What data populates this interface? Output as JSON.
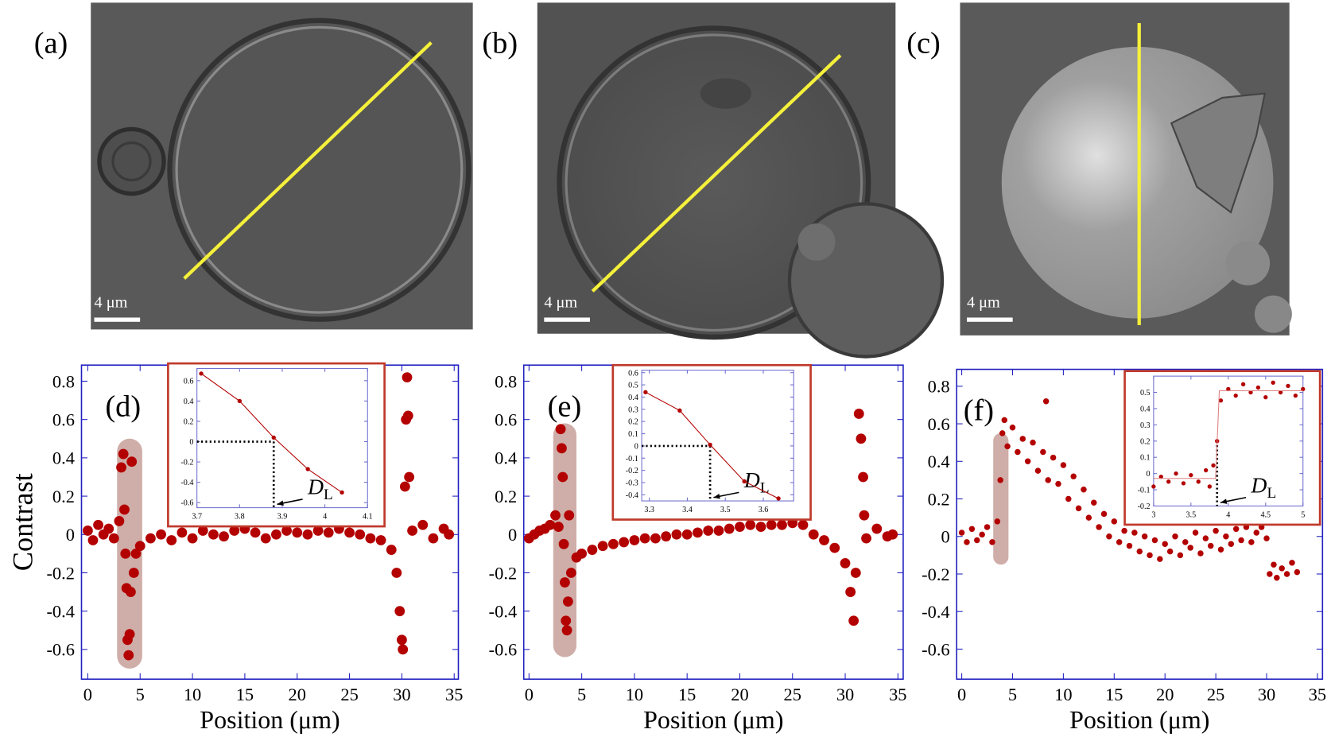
{
  "images": [
    {
      "label": "(a)",
      "scale_bar": "4 μm"
    },
    {
      "label": "(b)",
      "scale_bar": "4 μm"
    },
    {
      "label": "(c)",
      "scale_bar": "4 μm"
    }
  ],
  "chart_data": [
    {
      "type": "scatter",
      "panel_label": "(d)",
      "x_label": "Position (μm)",
      "y_label": "Contrast",
      "xlim": [
        -0.6,
        35.4
      ],
      "ylim": [
        -0.755,
        0.884
      ],
      "xticks": [
        0,
        5,
        10,
        15,
        20,
        25,
        30,
        35
      ],
      "yticks": [
        0.8,
        0.6,
        0.4,
        0.2,
        0,
        -0.2,
        -0.4,
        -0.6
      ],
      "highlight_x": [
        2.8,
        5.2
      ],
      "highlight_y": [
        -0.7,
        0.5
      ],
      "series": [
        {
          "color": "#b30000",
          "x": [
            0,
            0.5,
            1,
            1.5,
            2,
            2.5,
            3,
            3.2,
            3.4,
            3.5,
            3.6,
            3.7,
            3.8,
            3.9,
            4,
            4.1,
            4.2,
            4.4,
            4.6,
            5,
            6,
            7,
            8,
            9,
            10,
            11,
            12,
            13,
            14,
            15,
            16,
            17,
            18,
            19,
            20,
            21,
            22,
            23,
            24,
            25,
            26,
            27,
            28,
            29,
            29.5,
            29.8,
            30,
            30.1,
            30.3,
            30.4,
            30.5,
            30.6,
            30.7,
            31,
            32,
            33,
            34,
            34.5
          ],
          "values": [
            0.02,
            -0.03,
            0.05,
            0,
            0.03,
            -0.02,
            0.07,
            0.35,
            0.42,
            0.13,
            -0.1,
            -0.28,
            -0.55,
            -0.63,
            -0.52,
            -0.3,
            0.38,
            -0.2,
            -0.1,
            -0.06,
            -0.02,
            0,
            -0.03,
            0.01,
            -0.02,
            0.02,
            0,
            -0.01,
            0.02,
            0.03,
            0.01,
            -0.02,
            0,
            0.02,
            0.01,
            0,
            0.02,
            0.01,
            0.03,
            0.01,
            0,
            -0.02,
            -0.03,
            -0.08,
            -0.2,
            -0.4,
            -0.55,
            -0.6,
            0.25,
            0.6,
            0.82,
            0.62,
            0.3,
            0.02,
            0.05,
            -0.02,
            0.03,
            0
          ]
        }
      ],
      "inset": {
        "type": "scatter",
        "xlim": [
          3.7,
          4.1
        ],
        "ylim": [
          -0.65,
          0.72
        ],
        "xticks": [
          3.7,
          3.8,
          3.9,
          4,
          4.1
        ],
        "yticks": [
          0.6,
          0.4,
          0.2,
          0,
          -0.2,
          -0.4,
          -0.6
        ],
        "marker": {
          "x": 3.88,
          "y": 0
        },
        "marker_hline": true,
        "annotation": "D",
        "annotation_sub": "L",
        "series": [
          {
            "color": "#b30000",
            "line": true,
            "x": [
              3.71,
              3.8,
              3.88,
              3.96,
              4.04
            ],
            "values": [
              0.67,
              0.4,
              0.04,
              -0.27,
              -0.5
            ]
          }
        ]
      }
    },
    {
      "type": "scatter",
      "panel_label": "(e)",
      "x_label": "Position (μm)",
      "xlim": [
        -0.5,
        35.5
      ],
      "ylim": [
        -0.755,
        0.884
      ],
      "xticks": [
        0,
        5,
        10,
        15,
        20,
        25,
        30,
        35
      ],
      "yticks": [
        0.8,
        0.6,
        0.4,
        0.2,
        0,
        -0.2,
        -0.4,
        -0.6
      ],
      "highlight_x": [
        2.3,
        4.5
      ],
      "highlight_y": [
        -0.64,
        0.58
      ],
      "series": [
        {
          "color": "#b30000",
          "x": [
            0,
            0.5,
            1,
            1.5,
            2,
            2.5,
            2.8,
            3,
            3.1,
            3.2,
            3.3,
            3.4,
            3.5,
            3.6,
            3.7,
            3.8,
            4,
            4.5,
            5,
            6,
            7,
            8,
            9,
            10,
            11,
            12,
            13,
            14,
            15,
            16,
            17,
            18,
            19,
            20,
            21,
            22,
            23,
            24,
            25,
            26,
            27,
            28,
            29,
            30,
            30.5,
            30.8,
            31,
            31.3,
            31.5,
            31.7,
            31.8,
            32,
            33,
            34,
            34.5
          ],
          "values": [
            -0.02,
            0,
            0.02,
            0.03,
            0.05,
            0.1,
            0.04,
            0.55,
            0.45,
            0.3,
            -0.05,
            -0.25,
            -0.45,
            -0.5,
            -0.35,
            0.1,
            -0.2,
            -0.12,
            -0.1,
            -0.08,
            -0.06,
            -0.05,
            -0.04,
            -0.03,
            -0.02,
            -0.02,
            -0.01,
            0,
            0,
            0.01,
            0.02,
            0.02,
            0.03,
            0.04,
            0.05,
            0.04,
            0.05,
            0.05,
            0.06,
            0.05,
            0,
            -0.03,
            -0.07,
            -0.15,
            -0.3,
            -0.45,
            -0.2,
            0.63,
            0.5,
            0.3,
            0.1,
            -0.02,
            0.03,
            -0.01,
            0
          ]
        }
      ],
      "inset": {
        "type": "scatter",
        "xlim": [
          3.28,
          3.68
        ],
        "ylim": [
          -0.45,
          0.62
        ],
        "xticks": [
          3.3,
          3.4,
          3.5,
          3.6
        ],
        "yticks": [
          0.6,
          0.5,
          0.4,
          0.3,
          0.2,
          0.1,
          0,
          -0.1,
          -0.2,
          -0.3,
          -0.4
        ],
        "marker": {
          "x": 3.46,
          "y": 0
        },
        "marker_hline": true,
        "annotation": "D",
        "annotation_sub": "L",
        "series": [
          {
            "color": "#b30000",
            "line": true,
            "x": [
              3.29,
              3.38,
              3.46,
              3.55,
              3.64
            ],
            "values": [
              0.44,
              0.29,
              0.01,
              -0.29,
              -0.43
            ]
          }
        ]
      }
    },
    {
      "type": "scatter",
      "panel_label": "(f)",
      "x_label": "Position (μm)",
      "xlim": [
        -0.5,
        35.5
      ],
      "ylim": [
        -0.76,
        0.89
      ],
      "xticks": [
        0,
        5,
        10,
        15,
        20,
        25,
        30,
        35
      ],
      "yticks": [
        0.8,
        0.6,
        0.4,
        0.2,
        0,
        -0.2,
        -0.4,
        -0.6
      ],
      "highlight_x": [
        3.1,
        4.6
      ],
      "highlight_y": [
        -0.15,
        0.55
      ],
      "series": [
        {
          "color": "#b30000",
          "x": [
            0,
            0.5,
            1,
            1.5,
            2,
            2.5,
            3,
            3.5,
            3.8,
            4,
            4.2,
            4.5,
            5,
            5.5,
            6,
            6.5,
            7,
            7.5,
            8,
            8.3,
            8.5,
            9,
            9.5,
            10,
            10.5,
            11,
            11.5,
            12,
            12.5,
            13,
            13.5,
            14,
            14.5,
            15,
            15.5,
            16,
            16.5,
            17,
            17.5,
            18,
            18.5,
            19,
            19.5,
            20,
            20.5,
            21,
            21.5,
            22,
            22.5,
            23,
            23.5,
            24,
            24.5,
            25,
            25.5,
            26,
            26.5,
            27,
            27.5,
            28,
            28.5,
            29,
            29.5,
            30,
            30.3,
            30.7,
            31,
            31.5,
            32,
            32.5,
            33
          ],
          "values": [
            0.02,
            -0.03,
            0.04,
            -0.02,
            0.01,
            0.05,
            -0.03,
            0.08,
            0.3,
            0.55,
            0.62,
            0.48,
            0.58,
            0.45,
            0.52,
            0.4,
            0.5,
            0.35,
            0.45,
            0.72,
            0.3,
            0.42,
            0.28,
            0.38,
            0.2,
            0.32,
            0.15,
            0.25,
            0.1,
            0.18,
            0.05,
            0.12,
            0,
            0.08,
            -0.03,
            0.03,
            -0.05,
            0.02,
            -0.08,
            0,
            -0.1,
            -0.02,
            -0.12,
            -0.04,
            -0.08,
            0,
            -0.1,
            -0.03,
            -0.06,
            0.02,
            -0.09,
            -0.01,
            -0.05,
            0.03,
            -0.07,
            0,
            -0.04,
            0.04,
            -0.02,
            0.05,
            -0.03,
            0.02,
            0.05,
            -0.01,
            -0.2,
            -0.15,
            -0.22,
            -0.17,
            -0.2,
            -0.14,
            -0.19
          ]
        }
      ],
      "inset": {
        "type": "scatter",
        "xlim": [
          3,
          5
        ],
        "ylim": [
          -0.2,
          0.6
        ],
        "xticks": [
          3,
          3.5,
          4,
          4.5,
          5
        ],
        "yticks": [
          0.5,
          0.4,
          0.3,
          0.2,
          0.1,
          0,
          -0.1,
          -0.2
        ],
        "marker": {
          "x": 3.85,
          "y": 0.2
        },
        "marker_hline": false,
        "annotation": "D",
        "annotation_sub": "L",
        "series": [
          {
            "color": "#b30000",
            "x": [
              3,
              3.1,
              3.2,
              3.3,
              3.4,
              3.5,
              3.6,
              3.7,
              3.75,
              3.8,
              3.85,
              3.9,
              4,
              4.1,
              4.2,
              4.3,
              4.4,
              4.5,
              4.6,
              4.7,
              4.8,
              4.9,
              5
            ],
            "values": [
              -0.08,
              -0.02,
              -0.05,
              0,
              -0.06,
              -0.01,
              -0.05,
              0.02,
              -0.08,
              0.05,
              0.2,
              0.45,
              0.52,
              0.48,
              0.55,
              0.5,
              0.53,
              0.47,
              0.56,
              0.5,
              0.54,
              0.48,
              0.52
            ]
          },
          {
            "color": "#e08080",
            "line": true,
            "markers": false,
            "x": [
              3,
              3.83,
              3.88,
              5
            ],
            "values": [
              -0.03,
              -0.03,
              0.51,
              0.51
            ]
          }
        ]
      }
    }
  ]
}
